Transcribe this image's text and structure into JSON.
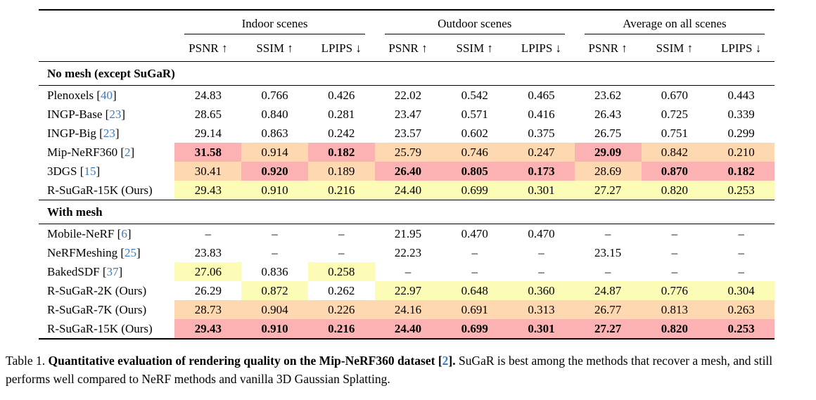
{
  "colors": {
    "best_highlight": "#FCB2B2",
    "second_highlight": "#FDD8B1",
    "third_highlight": "#FCFCB7",
    "citation_link": "#3B7BBE",
    "text": "#000000"
  },
  "table": {
    "column_groups": [
      {
        "label": "Indoor scenes"
      },
      {
        "label": "Outdoor scenes"
      },
      {
        "label": "Average on all scenes"
      }
    ],
    "metrics": [
      "PSNR ↑",
      "SSIM ↑",
      "LPIPS ↓"
    ],
    "missing_value": "–",
    "sections": [
      {
        "title": "No mesh (except SuGaR)",
        "rows": [
          {
            "method": "Plenoxels",
            "cite": "40",
            "values": [
              "24.83",
              "0.766",
              "0.426",
              "22.02",
              "0.542",
              "0.465",
              "23.62",
              "0.670",
              "0.443"
            ],
            "hl": [
              0,
              0,
              0,
              0,
              0,
              0,
              0,
              0,
              0
            ],
            "bold": [
              0,
              0,
              0,
              0,
              0,
              0,
              0,
              0,
              0
            ]
          },
          {
            "method": "INGP-Base",
            "cite": "23",
            "values": [
              "28.65",
              "0.840",
              "0.281",
              "23.47",
              "0.571",
              "0.416",
              "26.43",
              "0.725",
              "0.339"
            ],
            "hl": [
              0,
              0,
              0,
              0,
              0,
              0,
              0,
              0,
              0
            ],
            "bold": [
              0,
              0,
              0,
              0,
              0,
              0,
              0,
              0,
              0
            ]
          },
          {
            "method": "INGP-Big",
            "cite": "23",
            "values": [
              "29.14",
              "0.863",
              "0.242",
              "23.57",
              "0.602",
              "0.375",
              "26.75",
              "0.751",
              "0.299"
            ],
            "hl": [
              0,
              0,
              0,
              0,
              0,
              0,
              0,
              0,
              0
            ],
            "bold": [
              0,
              0,
              0,
              0,
              0,
              0,
              0,
              0,
              0
            ]
          },
          {
            "method": "Mip-NeRF360",
            "cite": "2",
            "values": [
              "31.58",
              "0.914",
              "0.182",
              "25.79",
              "0.746",
              "0.247",
              "29.09",
              "0.842",
              "0.210"
            ],
            "hl": [
              1,
              2,
              1,
              2,
              2,
              2,
              1,
              2,
              2
            ],
            "bold": [
              1,
              0,
              1,
              0,
              0,
              0,
              1,
              0,
              0
            ]
          },
          {
            "method": "3DGS",
            "cite": "15",
            "values": [
              "30.41",
              "0.920",
              "0.189",
              "26.40",
              "0.805",
              "0.173",
              "28.69",
              "0.870",
              "0.182"
            ],
            "hl": [
              2,
              1,
              2,
              1,
              1,
              1,
              2,
              1,
              1
            ],
            "bold": [
              0,
              1,
              0,
              1,
              1,
              1,
              0,
              1,
              1
            ]
          },
          {
            "method": "R-SuGaR-15K (Ours)",
            "cite": null,
            "values": [
              "29.43",
              "0.910",
              "0.216",
              "24.40",
              "0.699",
              "0.301",
              "27.27",
              "0.820",
              "0.253"
            ],
            "hl": [
              3,
              3,
              3,
              3,
              3,
              3,
              3,
              3,
              3
            ],
            "bold": [
              0,
              0,
              0,
              0,
              0,
              0,
              0,
              0,
              0
            ]
          }
        ]
      },
      {
        "title": "With mesh",
        "rows": [
          {
            "method": "Mobile-NeRF",
            "cite": "6",
            "values": [
              "–",
              "–",
              "–",
              "21.95",
              "0.470",
              "0.470",
              "–",
              "–",
              "–"
            ],
            "hl": [
              0,
              0,
              0,
              0,
              0,
              0,
              0,
              0,
              0
            ],
            "bold": [
              0,
              0,
              0,
              0,
              0,
              0,
              0,
              0,
              0
            ]
          },
          {
            "method": "NeRFMeshing",
            "cite": "25",
            "values": [
              "23.83",
              "–",
              "–",
              "22.23",
              "–",
              "–",
              "23.15",
              "–",
              "–"
            ],
            "hl": [
              0,
              0,
              0,
              0,
              0,
              0,
              0,
              0,
              0
            ],
            "bold": [
              0,
              0,
              0,
              0,
              0,
              0,
              0,
              0,
              0
            ]
          },
          {
            "method": "BakedSDF",
            "cite": "37",
            "values": [
              "27.06",
              "0.836",
              "0.258",
              "–",
              "–",
              "–",
              "–",
              "–",
              "–"
            ],
            "hl": [
              3,
              0,
              3,
              0,
              0,
              0,
              0,
              0,
              0
            ],
            "bold": [
              0,
              0,
              0,
              0,
              0,
              0,
              0,
              0,
              0
            ]
          },
          {
            "method": "R-SuGaR-2K (Ours)",
            "cite": null,
            "values": [
              "26.29",
              "0.872",
              "0.262",
              "22.97",
              "0.648",
              "0.360",
              "24.87",
              "0.776",
              "0.304"
            ],
            "hl": [
              0,
              3,
              0,
              3,
              3,
              3,
              3,
              3,
              3
            ],
            "bold": [
              0,
              0,
              0,
              0,
              0,
              0,
              0,
              0,
              0
            ]
          },
          {
            "method": "R-SuGaR-7K (Ours)",
            "cite": null,
            "values": [
              "28.73",
              "0.904",
              "0.226",
              "24.16",
              "0.691",
              "0.313",
              "26.77",
              "0.813",
              "0.263"
            ],
            "hl": [
              2,
              2,
              2,
              2,
              2,
              2,
              2,
              2,
              2
            ],
            "bold": [
              0,
              0,
              0,
              0,
              0,
              0,
              0,
              0,
              0
            ]
          },
          {
            "method": "R-SuGaR-15K (Ours)",
            "cite": null,
            "values": [
              "29.43",
              "0.910",
              "0.216",
              "24.40",
              "0.699",
              "0.301",
              "27.27",
              "0.820",
              "0.253"
            ],
            "hl": [
              1,
              1,
              1,
              1,
              1,
              1,
              1,
              1,
              1
            ],
            "bold": [
              1,
              1,
              1,
              1,
              1,
              1,
              1,
              1,
              1
            ]
          }
        ]
      }
    ]
  },
  "caption": {
    "prefix": "Table 1. ",
    "bold_pre": "Quantitative evaluation of rendering quality on the Mip-NeRF360 dataset [",
    "bold_cite": "2",
    "bold_post": "].",
    "rest": " SuGaR is best among the methods that recover a mesh, and still performs well compared to NeRF methods and vanilla 3D Gaussian Splatting."
  }
}
